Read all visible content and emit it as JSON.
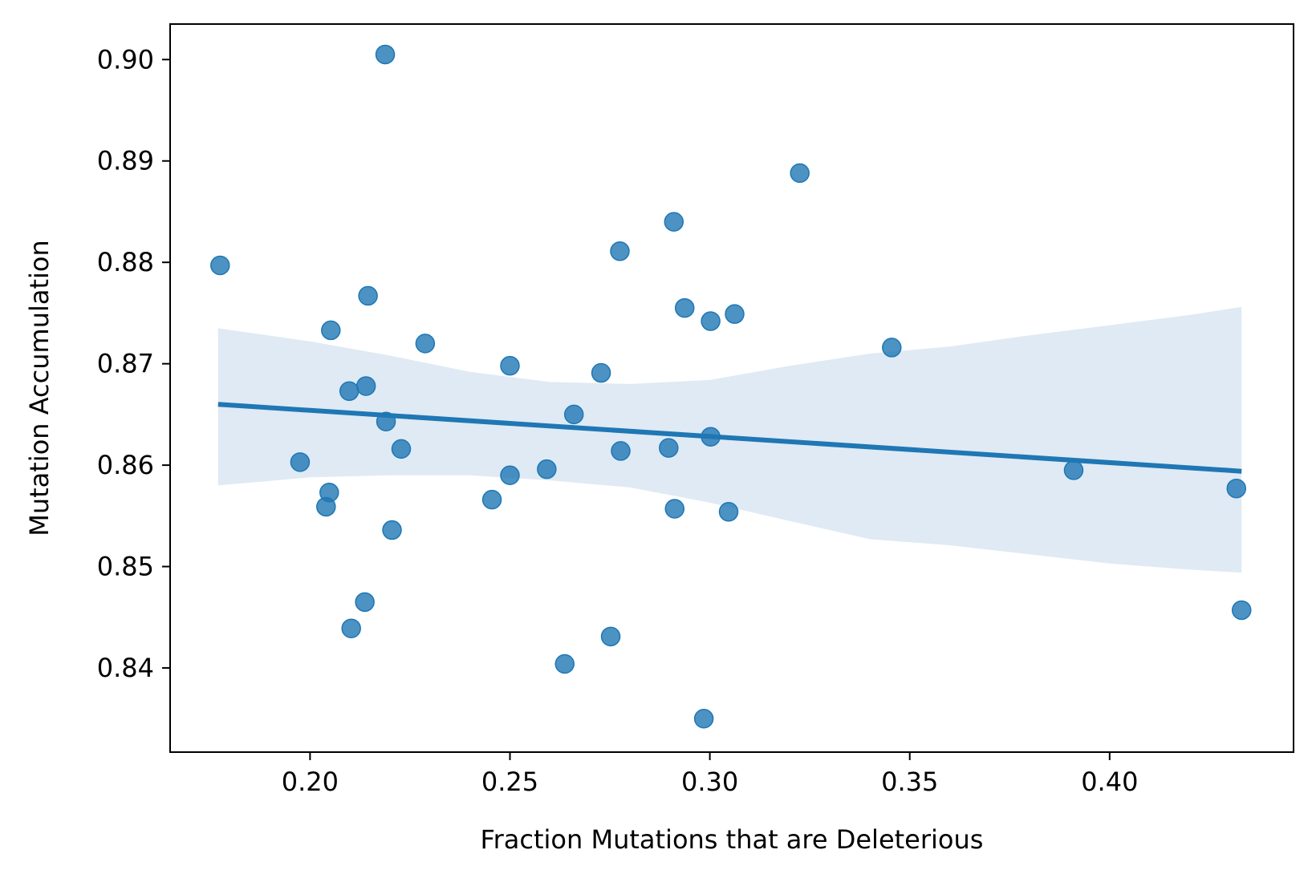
{
  "chart_data": {
    "type": "scatter",
    "title": "",
    "xlabel": "Fraction Mutations that are Deleterious",
    "ylabel": "Mutation Accumulation",
    "xlim": [
      0.165,
      0.446
    ],
    "ylim": [
      0.8317,
      0.9035
    ],
    "x_ticks": [
      0.2,
      0.25,
      0.3,
      0.35,
      0.4
    ],
    "x_tick_labels": [
      "0.20",
      "0.25",
      "0.30",
      "0.35",
      "0.40"
    ],
    "y_ticks": [
      0.84,
      0.85,
      0.86,
      0.87,
      0.88,
      0.89,
      0.9
    ],
    "y_tick_labels": [
      "0.84",
      "0.85",
      "0.86",
      "0.87",
      "0.88",
      "0.89",
      "0.90"
    ],
    "grid": false,
    "legend": "none",
    "colors": {
      "points": "#1f77b4",
      "regression_line": "#1f77b4",
      "confidence_band": "#dfeaf4",
      "axes": "#000000"
    },
    "series": [
      {
        "points": [
          {
            "x": 0.1775,
            "y": 0.8797
          },
          {
            "x": 0.1975,
            "y": 0.8603
          },
          {
            "x": 0.204,
            "y": 0.8559
          },
          {
            "x": 0.2048,
            "y": 0.8573
          },
          {
            "x": 0.2052,
            "y": 0.8733
          },
          {
            "x": 0.2098,
            "y": 0.8673
          },
          {
            "x": 0.2103,
            "y": 0.8439
          },
          {
            "x": 0.2137,
            "y": 0.8465
          },
          {
            "x": 0.214,
            "y": 0.8678
          },
          {
            "x": 0.2145,
            "y": 0.8767
          },
          {
            "x": 0.2188,
            "y": 0.9005
          },
          {
            "x": 0.219,
            "y": 0.8643
          },
          {
            "x": 0.2205,
            "y": 0.8536
          },
          {
            "x": 0.2228,
            "y": 0.8616
          },
          {
            "x": 0.2288,
            "y": 0.872
          },
          {
            "x": 0.2455,
            "y": 0.8566
          },
          {
            "x": 0.25,
            "y": 0.8698
          },
          {
            "x": 0.25,
            "y": 0.859
          },
          {
            "x": 0.2592,
            "y": 0.8596
          },
          {
            "x": 0.2637,
            "y": 0.8404
          },
          {
            "x": 0.266,
            "y": 0.865
          },
          {
            "x": 0.2728,
            "y": 0.8691
          },
          {
            "x": 0.2752,
            "y": 0.8431
          },
          {
            "x": 0.2775,
            "y": 0.8811
          },
          {
            "x": 0.2777,
            "y": 0.8614
          },
          {
            "x": 0.2897,
            "y": 0.8617
          },
          {
            "x": 0.291,
            "y": 0.884
          },
          {
            "x": 0.2912,
            "y": 0.8557
          },
          {
            "x": 0.2937,
            "y": 0.8755
          },
          {
            "x": 0.2985,
            "y": 0.835
          },
          {
            "x": 0.3002,
            "y": 0.8742
          },
          {
            "x": 0.3002,
            "y": 0.8628
          },
          {
            "x": 0.3047,
            "y": 0.8554
          },
          {
            "x": 0.3062,
            "y": 0.8749
          },
          {
            "x": 0.3225,
            "y": 0.8888
          },
          {
            "x": 0.3455,
            "y": 0.8716
          },
          {
            "x": 0.391,
            "y": 0.8595
          },
          {
            "x": 0.4317,
            "y": 0.8577
          },
          {
            "x": 0.433,
            "y": 0.8457
          }
        ]
      }
    ],
    "regression": {
      "x": [
        0.177,
        0.433
      ],
      "y": [
        0.866,
        0.8594
      ]
    },
    "confidence_band": {
      "x": [
        0.177,
        0.2,
        0.22,
        0.24,
        0.26,
        0.28,
        0.3,
        0.32,
        0.34,
        0.36,
        0.38,
        0.4,
        0.42,
        0.433
      ],
      "upper": [
        0.8735,
        0.8722,
        0.8708,
        0.8692,
        0.8682,
        0.868,
        0.8684,
        0.8698,
        0.871,
        0.8717,
        0.8728,
        0.8738,
        0.8748,
        0.8756
      ],
      "lower": [
        0.858,
        0.8588,
        0.859,
        0.859,
        0.8585,
        0.8578,
        0.8563,
        0.8545,
        0.8527,
        0.8521,
        0.8512,
        0.8503,
        0.8497,
        0.8494
      ]
    }
  }
}
